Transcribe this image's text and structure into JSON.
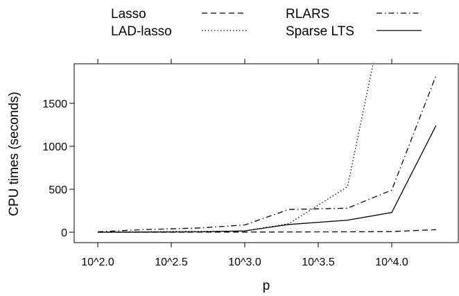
{
  "chart_data": {
    "type": "line",
    "title": "",
    "xlabel": "p",
    "ylabel": "CPU times (seconds)",
    "x_scale": "log10",
    "x": [
      100,
      200,
      500,
      1000,
      2000,
      5000,
      10000,
      20000
    ],
    "x_ticks": [
      {
        "value": 100,
        "label": "10^2.0"
      },
      {
        "value": 316.23,
        "label": "10^2.5"
      },
      {
        "value": 1000,
        "label": "10^3.0"
      },
      {
        "value": 3162.3,
        "label": "10^3.5"
      },
      {
        "value": 10000,
        "label": "10^4.0"
      }
    ],
    "y_ticks": [
      0,
      500,
      1000,
      1500
    ],
    "ylim": [
      -120,
      1950
    ],
    "xlim": [
      100,
      20000
    ],
    "legend_position": "top",
    "series": [
      {
        "name": "Lasso",
        "dash": "dashed",
        "values": [
          0,
          0,
          1,
          2,
          3,
          5,
          8,
          30
        ]
      },
      {
        "name": "LAD-lasso",
        "dash": "dotted",
        "values": [
          2,
          5,
          10,
          15,
          100,
          530,
          3000,
          null
        ]
      },
      {
        "name": "RLARS",
        "dash": "dotdash",
        "values": [
          5,
          30,
          50,
          85,
          265,
          280,
          490,
          1820
        ]
      },
      {
        "name": "Sparse LTS",
        "dash": "solid",
        "values": [
          0,
          2,
          5,
          15,
          90,
          140,
          230,
          1240
        ]
      }
    ],
    "grid": false
  },
  "colors": {
    "line": "#000000",
    "background": "#ffffff"
  }
}
